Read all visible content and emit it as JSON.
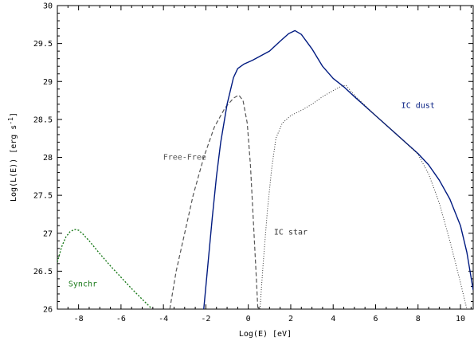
{
  "chart_data": {
    "type": "line",
    "xlabel": "Log(E) [eV]",
    "ylabel": "Log(L(E)) [erg s",
    "ylabel_sup": "-1",
    "ylabel_close": "]",
    "xlim": [
      -9,
      10.6
    ],
    "ylim": [
      26,
      30
    ],
    "xticks": [
      -8,
      -6,
      -4,
      -2,
      0,
      2,
      4,
      6,
      8,
      10
    ],
    "yticks": [
      26,
      26.5,
      27,
      27.5,
      28,
      28.5,
      29,
      29.5,
      30
    ],
    "ytick_labels": [
      "26",
      "26.5",
      "27",
      "27.5",
      "28",
      "28.5",
      "29",
      "29.5",
      "30"
    ],
    "series": [
      {
        "name": "Synchr",
        "color": "#1a7a1a",
        "style": "dotted-dense",
        "label_pos": [
          -7.8,
          26.3
        ],
        "points": [
          [
            -9.0,
            26.62
          ],
          [
            -8.8,
            26.82
          ],
          [
            -8.6,
            26.95
          ],
          [
            -8.4,
            27.02
          ],
          [
            -8.2,
            27.05
          ],
          [
            -8.0,
            27.04
          ],
          [
            -7.8,
            26.99
          ],
          [
            -7.5,
            26.9
          ],
          [
            -7.0,
            26.73
          ],
          [
            -6.5,
            26.57
          ],
          [
            -6.0,
            26.42
          ],
          [
            -5.5,
            26.27
          ],
          [
            -5.0,
            26.13
          ],
          [
            -4.6,
            26.02
          ]
        ]
      },
      {
        "name": "Free-Free",
        "color": "#555555",
        "style": "dashed",
        "label_pos": [
          -3.0,
          27.97
        ],
        "points": [
          [
            -3.7,
            26.0
          ],
          [
            -3.4,
            26.5
          ],
          [
            -3.0,
            27.0
          ],
          [
            -2.6,
            27.5
          ],
          [
            -2.1,
            28.0
          ],
          [
            -1.6,
            28.4
          ],
          [
            -1.1,
            28.65
          ],
          [
            -0.7,
            28.78
          ],
          [
            -0.45,
            28.82
          ],
          [
            -0.25,
            28.75
          ],
          [
            -0.05,
            28.45
          ],
          [
            0.1,
            27.9
          ],
          [
            0.25,
            27.1
          ],
          [
            0.38,
            26.4
          ],
          [
            0.45,
            26.0
          ]
        ]
      },
      {
        "name": "IC dust",
        "color": "#001a80",
        "style": "solid",
        "label_pos": [
          8.0,
          28.65
        ],
        "points": [
          [
            -2.1,
            26.0
          ],
          [
            -1.9,
            26.6
          ],
          [
            -1.7,
            27.2
          ],
          [
            -1.5,
            27.75
          ],
          [
            -1.3,
            28.2
          ],
          [
            -1.0,
            28.7
          ],
          [
            -0.7,
            29.05
          ],
          [
            -0.5,
            29.17
          ],
          [
            -0.2,
            29.23
          ],
          [
            0.2,
            29.28
          ],
          [
            0.6,
            29.34
          ],
          [
            1.0,
            29.4
          ],
          [
            1.5,
            29.53
          ],
          [
            1.9,
            29.63
          ],
          [
            2.2,
            29.67
          ],
          [
            2.5,
            29.62
          ],
          [
            3.0,
            29.43
          ],
          [
            3.5,
            29.2
          ],
          [
            4.0,
            29.04
          ],
          [
            4.5,
            28.93
          ],
          [
            5.0,
            28.8
          ],
          [
            6.0,
            28.55
          ],
          [
            7.0,
            28.3
          ],
          [
            8.0,
            28.05
          ],
          [
            8.5,
            27.9
          ],
          [
            9.0,
            27.7
          ],
          [
            9.5,
            27.45
          ],
          [
            10.0,
            27.1
          ],
          [
            10.3,
            26.75
          ],
          [
            10.6,
            26.25
          ]
        ]
      },
      {
        "name": "IC star",
        "color": "#333333",
        "style": "dotted",
        "label_pos": [
          2.0,
          26.98
        ],
        "points": [
          [
            0.55,
            26.0
          ],
          [
            0.7,
            26.6
          ],
          [
            0.9,
            27.3
          ],
          [
            1.1,
            27.85
          ],
          [
            1.3,
            28.25
          ],
          [
            1.6,
            28.45
          ],
          [
            2.0,
            28.55
          ],
          [
            2.5,
            28.62
          ],
          [
            3.0,
            28.7
          ],
          [
            3.5,
            28.8
          ],
          [
            4.0,
            28.88
          ],
          [
            4.4,
            28.94
          ],
          [
            4.6,
            28.95
          ],
          [
            5.0,
            28.82
          ],
          [
            6.0,
            28.55
          ],
          [
            7.0,
            28.3
          ],
          [
            8.0,
            28.04
          ],
          [
            8.5,
            27.78
          ],
          [
            9.0,
            27.4
          ],
          [
            9.5,
            26.9
          ],
          [
            10.0,
            26.35
          ],
          [
            10.3,
            26.0
          ]
        ]
      }
    ]
  }
}
